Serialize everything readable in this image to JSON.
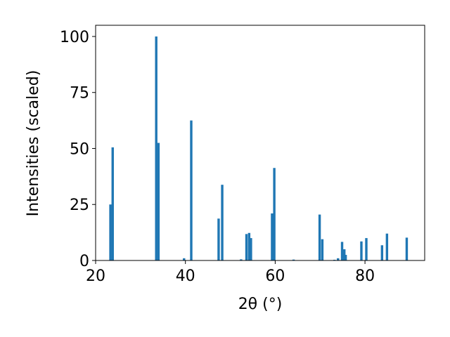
{
  "chart_data": {
    "type": "bar",
    "color": "#1f77b4",
    "xlabel": "2θ (°)",
    "ylabel": "Intensities (scaled)",
    "x": [
      23.3,
      23.8,
      33.5,
      34.0,
      39.7,
      41.3,
      47.4,
      48.2,
      52.4,
      53.6,
      54.2,
      54.6,
      59.3,
      59.8,
      64.1,
      69.9,
      70.5,
      73.2,
      74.0,
      74.9,
      75.4,
      75.7,
      79.2,
      80.3,
      83.8,
      84.9,
      89.3
    ],
    "values": [
      25,
      50.5,
      100,
      52.5,
      1,
      62.5,
      18.7,
      33.8,
      0.5,
      11.8,
      12.3,
      10,
      21,
      41.3,
      0.4,
      20.5,
      9.5,
      0.3,
      1,
      8.3,
      5,
      2.5,
      8.5,
      10,
      6.8,
      12,
      10.2
    ],
    "xlim": [
      20,
      93.3
    ],
    "ylim": [
      0,
      105
    ],
    "xticks": [
      20,
      40,
      60,
      80
    ],
    "yticks": [
      0,
      25,
      50,
      75,
      100
    ]
  }
}
